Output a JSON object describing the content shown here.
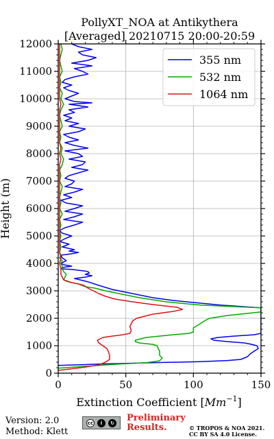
{
  "chart_data": {
    "type": "line",
    "title": [
      "PollyXT_NOA at Antikythera",
      "[Averaged] 20210715 20:00-20:59"
    ],
    "xlabel": "Extinction Coefficient [Mm⁻¹]",
    "xlabel_base": "Extinction Coefficient [",
    "xlabel_unit": "Mm",
    "xlabel_exp": "−1",
    "xlabel_close": "]",
    "ylabel": "Height (m)",
    "xlim": [
      0,
      150
    ],
    "ylim": [
      0,
      12000
    ],
    "xticks": [
      0,
      50,
      100,
      150
    ],
    "yticks": [
      0,
      1000,
      2000,
      3000,
      4000,
      5000,
      6000,
      7000,
      8000,
      9000,
      10000,
      11000,
      12000
    ],
    "grid": true,
    "legend_position": "top-right",
    "series": [
      {
        "name": "355 nm",
        "color": "#0000ee",
        "points": [
          [
            0,
            280
          ],
          [
            30,
            330
          ],
          [
            70,
            380
          ],
          [
            105,
            420
          ],
          [
            125,
            460
          ],
          [
            135,
            500
          ],
          [
            140,
            600
          ],
          [
            142,
            700
          ],
          [
            145,
            800
          ],
          [
            148,
            900
          ],
          [
            147,
            1000
          ],
          [
            143,
            1050
          ],
          [
            138,
            1100
          ],
          [
            125,
            1150
          ],
          [
            115,
            1200
          ],
          [
            113,
            1250
          ],
          [
            118,
            1300
          ],
          [
            130,
            1350
          ],
          [
            145,
            1400
          ],
          [
            150,
            1450
          ],
          [
            150,
            2380
          ],
          [
            120,
            2480
          ],
          [
            95,
            2600
          ],
          [
            85,
            2650
          ],
          [
            70,
            2750
          ],
          [
            55,
            2900
          ],
          [
            40,
            3050
          ],
          [
            30,
            3200
          ],
          [
            22,
            3330
          ],
          [
            12,
            3450
          ],
          [
            20,
            3500
          ],
          [
            25,
            3550
          ],
          [
            20,
            3600
          ],
          [
            23,
            3650
          ],
          [
            22,
            3700
          ],
          [
            20,
            3720
          ],
          [
            10,
            3780
          ],
          [
            2,
            3800
          ],
          [
            3,
            3850
          ],
          [
            10,
            3900
          ],
          [
            4,
            3950
          ],
          [
            2,
            4000
          ],
          [
            6,
            4100
          ],
          [
            3,
            4200
          ],
          [
            2,
            4300
          ],
          [
            10,
            4350
          ],
          [
            15,
            4400
          ],
          [
            8,
            4450
          ],
          [
            12,
            4500
          ],
          [
            3,
            4600
          ],
          [
            8,
            4700
          ],
          [
            1,
            4800
          ],
          [
            5,
            4900
          ],
          [
            10,
            5000
          ],
          [
            3,
            5100
          ],
          [
            1,
            5200
          ],
          [
            5,
            5300
          ],
          [
            12,
            5400
          ],
          [
            18,
            5500
          ],
          [
            4,
            5600
          ],
          [
            12,
            5700
          ],
          [
            18,
            5800
          ],
          [
            5,
            5900
          ],
          [
            12,
            6000
          ],
          [
            18,
            6100
          ],
          [
            6,
            6200
          ],
          [
            2,
            6300
          ],
          [
            10,
            6400
          ],
          [
            4,
            6500
          ],
          [
            12,
            6600
          ],
          [
            18,
            6700
          ],
          [
            5,
            6800
          ],
          [
            10,
            6900
          ],
          [
            12,
            7000
          ],
          [
            5,
            7100
          ],
          [
            8,
            7200
          ],
          [
            15,
            7300
          ],
          [
            22,
            7400
          ],
          [
            10,
            7500
          ],
          [
            18,
            7600
          ],
          [
            20,
            7700
          ],
          [
            8,
            7800
          ],
          [
            18,
            7900
          ],
          [
            15,
            8000
          ],
          [
            5,
            8100
          ],
          [
            22,
            8200
          ],
          [
            12,
            8300
          ],
          [
            5,
            8400
          ],
          [
            15,
            8500
          ],
          [
            8,
            8600
          ],
          [
            4,
            8700
          ],
          [
            15,
            8800
          ],
          [
            20,
            8900
          ],
          [
            8,
            9000
          ],
          [
            15,
            9100
          ],
          [
            5,
            9200
          ],
          [
            10,
            9300
          ],
          [
            4,
            9400
          ],
          [
            12,
            9500
          ],
          [
            8,
            9600
          ],
          [
            22,
            9700
          ],
          [
            8,
            9800
          ],
          [
            25,
            9850
          ],
          [
            12,
            9900
          ],
          [
            5,
            10000
          ],
          [
            10,
            10100
          ],
          [
            15,
            10200
          ],
          [
            8,
            10300
          ],
          [
            4,
            10400
          ],
          [
            10,
            10500
          ],
          [
            3,
            10600
          ],
          [
            5,
            10700
          ],
          [
            12,
            10800
          ],
          [
            22,
            10900
          ],
          [
            18,
            11000
          ],
          [
            12,
            11100
          ],
          [
            25,
            11200
          ],
          [
            10,
            11300
          ],
          [
            22,
            11400
          ],
          [
            28,
            11500
          ],
          [
            18,
            11600
          ],
          [
            15,
            11700
          ],
          [
            25,
            11800
          ],
          [
            15,
            11900
          ],
          [
            10,
            12000
          ]
        ]
      },
      {
        "name": "532 nm",
        "color": "#00aa00",
        "points": [
          [
            0,
            180
          ],
          [
            20,
            250
          ],
          [
            45,
            330
          ],
          [
            65,
            380
          ],
          [
            75,
            450
          ],
          [
            77,
            550
          ],
          [
            75,
            650
          ],
          [
            75,
            800
          ],
          [
            73,
            1000
          ],
          [
            70,
            1050
          ],
          [
            60,
            1100
          ],
          [
            57,
            1150
          ],
          [
            57,
            1200
          ],
          [
            65,
            1300
          ],
          [
            85,
            1400
          ],
          [
            97,
            1450
          ],
          [
            100,
            1500
          ],
          [
            100,
            1650
          ],
          [
            105,
            1800
          ],
          [
            108,
            1900
          ],
          [
            112,
            2000
          ],
          [
            125,
            2100
          ],
          [
            150,
            2230
          ],
          [
            150,
            2380
          ],
          [
            105,
            2480
          ],
          [
            80,
            2600
          ],
          [
            60,
            2750
          ],
          [
            45,
            2900
          ],
          [
            35,
            3000
          ],
          [
            27,
            3100
          ],
          [
            20,
            3150
          ],
          [
            15,
            3250
          ],
          [
            10,
            3300
          ],
          [
            6,
            3350
          ],
          [
            4,
            3400
          ],
          [
            5,
            3500
          ],
          [
            6,
            3600
          ],
          [
            4,
            3700
          ],
          [
            3,
            3800
          ],
          [
            3,
            3900
          ],
          [
            2,
            4000
          ],
          [
            3,
            4100
          ],
          [
            1,
            4200
          ],
          [
            2,
            4300
          ],
          [
            1,
            4400
          ],
          [
            2,
            4600
          ],
          [
            1,
            4800
          ],
          [
            2,
            5000
          ],
          [
            1,
            5200
          ],
          [
            2,
            5400
          ],
          [
            1,
            5600
          ],
          [
            3,
            5800
          ],
          [
            1,
            6000
          ],
          [
            2,
            6200
          ],
          [
            1,
            6400
          ],
          [
            2,
            6600
          ],
          [
            3,
            6800
          ],
          [
            1,
            7000
          ],
          [
            2,
            7200
          ],
          [
            1,
            7400
          ],
          [
            3,
            7600
          ],
          [
            4,
            7800
          ],
          [
            2,
            8000
          ],
          [
            3,
            8200
          ],
          [
            1,
            8400
          ],
          [
            2,
            8600
          ],
          [
            1,
            8800
          ],
          [
            3,
            9000
          ],
          [
            2,
            9200
          ],
          [
            1,
            9400
          ],
          [
            2,
            9600
          ],
          [
            4,
            9800
          ],
          [
            2,
            10000
          ],
          [
            3,
            10200
          ],
          [
            1,
            10400
          ],
          [
            2,
            10600
          ],
          [
            1,
            10800
          ],
          [
            3,
            11000
          ],
          [
            2,
            11200
          ],
          [
            1,
            11400
          ],
          [
            2,
            11600
          ],
          [
            3,
            11800
          ],
          [
            2,
            12000
          ]
        ]
      },
      {
        "name": "1064 nm",
        "color": "#dd1111",
        "points": [
          [
            0,
            100
          ],
          [
            10,
            160
          ],
          [
            20,
            220
          ],
          [
            30,
            300
          ],
          [
            35,
            400
          ],
          [
            38,
            500
          ],
          [
            38,
            650
          ],
          [
            37,
            800
          ],
          [
            36,
            900
          ],
          [
            33,
            1000
          ],
          [
            30,
            1100
          ],
          [
            29,
            1200
          ],
          [
            33,
            1300
          ],
          [
            40,
            1350
          ],
          [
            48,
            1400
          ],
          [
            53,
            1450
          ],
          [
            54,
            1550
          ],
          [
            53,
            1700
          ],
          [
            54,
            1800
          ],
          [
            55,
            1900
          ],
          [
            58,
            2000
          ],
          [
            70,
            2150
          ],
          [
            85,
            2250
          ],
          [
            92,
            2320
          ],
          [
            88,
            2400
          ],
          [
            70,
            2500
          ],
          [
            55,
            2600
          ],
          [
            42,
            2700
          ],
          [
            35,
            2800
          ],
          [
            30,
            2900
          ],
          [
            26,
            3000
          ],
          [
            22,
            3100
          ],
          [
            19,
            3200
          ],
          [
            15,
            3250
          ],
          [
            10,
            3300
          ],
          [
            7,
            3350
          ],
          [
            4,
            3400
          ],
          [
            3,
            3500
          ],
          [
            2,
            3600
          ],
          [
            2,
            3800
          ],
          [
            1,
            4000
          ],
          [
            2,
            4200
          ],
          [
            1,
            4400
          ],
          [
            1,
            4600
          ],
          [
            1,
            4800
          ],
          [
            1,
            5000
          ],
          [
            1,
            5200
          ],
          [
            1,
            5400
          ],
          [
            1,
            5600
          ],
          [
            1,
            5800
          ],
          [
            1,
            6000
          ],
          [
            1,
            6200
          ],
          [
            1,
            6400
          ],
          [
            1,
            6600
          ],
          [
            1,
            6800
          ],
          [
            1,
            7000
          ],
          [
            1,
            7200
          ],
          [
            1,
            7400
          ],
          [
            1,
            7600
          ],
          [
            2,
            7800
          ],
          [
            1,
            8000
          ],
          [
            2,
            8200
          ],
          [
            1,
            8400
          ],
          [
            1,
            8600
          ],
          [
            1,
            8800
          ],
          [
            1,
            9000
          ],
          [
            1,
            9200
          ],
          [
            1,
            9400
          ],
          [
            1,
            9600
          ],
          [
            2,
            9800
          ],
          [
            1,
            10000
          ],
          [
            1,
            10200
          ],
          [
            1,
            10400
          ],
          [
            1,
            10600
          ],
          [
            1,
            10800
          ],
          [
            1,
            11000
          ],
          [
            1,
            11200
          ],
          [
            1,
            11400
          ],
          [
            1,
            11600
          ],
          [
            1,
            11800
          ],
          [
            1,
            12000
          ]
        ]
      }
    ]
  },
  "footer": {
    "version": "Version: 2.0",
    "method": "Method: Klett",
    "cc_badge_icons": [
      "cc-icon",
      "by-icon",
      "sa-icon"
    ],
    "preliminary_line1": "Preliminary",
    "preliminary_line2": "Results.",
    "preliminary_color": "#e02020",
    "copyright_line1": "© TROPOS & NOA 2021.",
    "copyright_line2": "CC BY SA 4.0 License."
  }
}
